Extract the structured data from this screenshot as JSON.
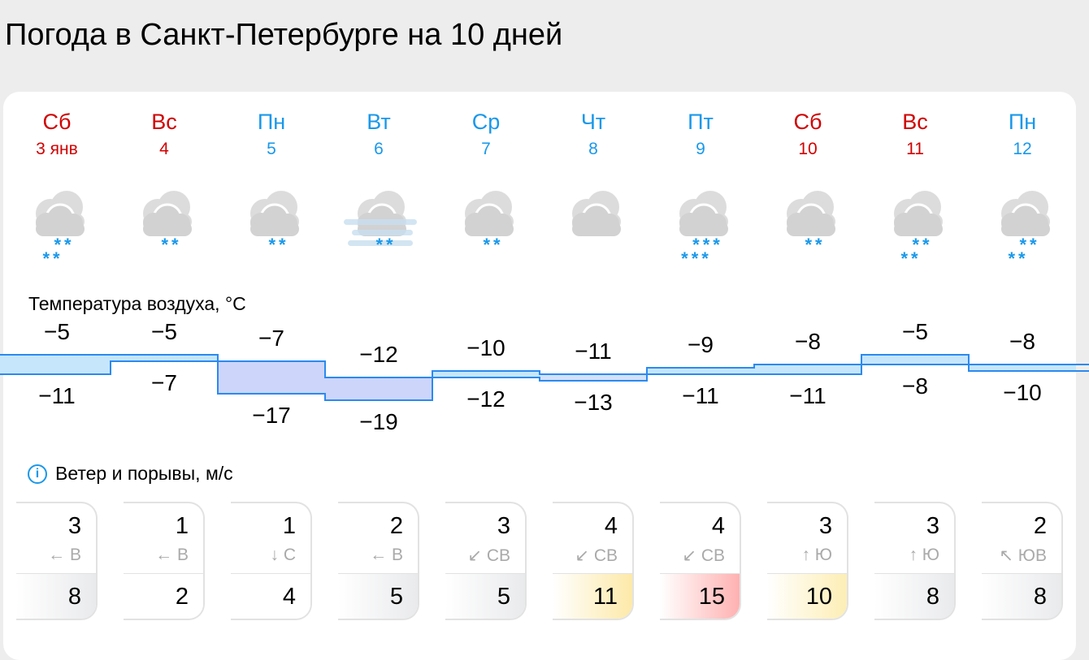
{
  "title": "Погода в Санкт-Петербурге на 10 дней",
  "days": [
    {
      "dow": "Сб",
      "date": "3 янв",
      "weekend": true,
      "icon": "cloud-snow-icon",
      "flakes": [
        "**",
        "**"
      ],
      "max": "−5",
      "min": "−11",
      "tmax": -5,
      "tmin": -11,
      "wind": "3",
      "dir": "← В",
      "gust": "8",
      "gust_color": "#e9eaec"
    },
    {
      "dow": "Вс",
      "date": "4",
      "weekend": true,
      "icon": "cloud-snow-icon",
      "flakes": [
        "**"
      ],
      "max": "−5",
      "min": "−7",
      "tmax": -5,
      "tmin": -7,
      "wind": "1",
      "dir": "← В",
      "gust": "2",
      "gust_color": "#ffffff"
    },
    {
      "dow": "Пн",
      "date": "5",
      "weekend": false,
      "icon": "cloud-snow-icon",
      "flakes": [
        "**"
      ],
      "max": "−7",
      "min": "−17",
      "tmax": -7,
      "tmin": -17,
      "wind": "1",
      "dir": "↓ С",
      "gust": "4",
      "gust_color": "#ffffff"
    },
    {
      "dow": "Вт",
      "date": "6",
      "weekend": false,
      "icon": "cloud-fog-snow-icon",
      "flakes": [
        "**"
      ],
      "max": "−12",
      "min": "−19",
      "tmax": -12,
      "tmin": -19,
      "wind": "2",
      "dir": "← В",
      "gust": "5",
      "gust_color": "#e9eaec"
    },
    {
      "dow": "Ср",
      "date": "7",
      "weekend": false,
      "icon": "cloud-snow-icon",
      "flakes": [
        "**"
      ],
      "max": "−10",
      "min": "−12",
      "tmax": -10,
      "tmin": -12,
      "wind": "3",
      "dir": "↙ СВ",
      "gust": "5",
      "gust_color": "#e9eaec"
    },
    {
      "dow": "Чт",
      "date": "8",
      "weekend": false,
      "icon": "cloud-icon",
      "flakes": [],
      "max": "−11",
      "min": "−13",
      "tmax": -11,
      "tmin": -13,
      "wind": "4",
      "dir": "↙ СВ",
      "gust": "11",
      "gust_color": "#fde9a8"
    },
    {
      "dow": "Пт",
      "date": "9",
      "weekend": false,
      "icon": "cloud-snow-icon",
      "flakes": [
        "***",
        "***"
      ],
      "max": "−9",
      "min": "−11",
      "tmax": -9,
      "tmin": -11,
      "wind": "4",
      "dir": "↙ СВ",
      "gust": "15",
      "gust_color": "#ffb1b1"
    },
    {
      "dow": "Сб",
      "date": "10",
      "weekend": true,
      "icon": "cloud-snow-icon",
      "flakes": [
        "**"
      ],
      "max": "−8",
      "min": "−11",
      "tmax": -8,
      "tmin": -11,
      "wind": "3",
      "dir": "↑ Ю",
      "gust": "10",
      "gust_color": "#fdeeb5"
    },
    {
      "dow": "Вс",
      "date": "11",
      "weekend": true,
      "icon": "cloud-snow-icon",
      "flakes": [
        "**",
        "**"
      ],
      "max": "−5",
      "min": "−8",
      "tmax": -5,
      "tmin": -8,
      "wind": "3",
      "dir": "↑ Ю",
      "gust": "8",
      "gust_color": "#e9eaec"
    },
    {
      "dow": "Пн",
      "date": "12",
      "weekend": false,
      "icon": "cloud-snow-icon",
      "flakes": [
        "**",
        "**"
      ],
      "max": "−8",
      "min": "−10",
      "tmax": -8,
      "tmin": -10,
      "wind": "2",
      "dir": "↖ ЮВ",
      "gust": "8",
      "gust_color": "#e9eaec"
    }
  ],
  "temp_label": "Температура воздуха, °C",
  "wind_label": "Ветер и порывы, м/с"
}
